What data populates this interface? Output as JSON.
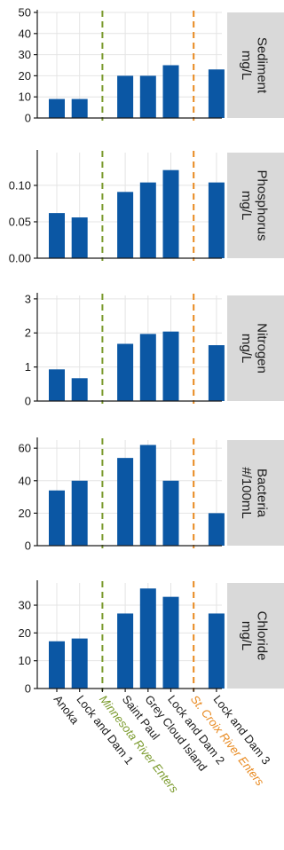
{
  "chart_data": {
    "type": "bar",
    "layout": "faceted, 5 stacked panels sharing the x axis, facet strip labels on the right",
    "categories": [
      "Anoka",
      "Lock and Dam 1",
      "Minnesota River Enters",
      "Saint Paul",
      "Grey Cloud Island",
      "Lock and Dam 2",
      "St. Croix River Enters",
      "Lock and Dam 3"
    ],
    "markers": [
      {
        "category": "Minnesota River Enters",
        "color": "#7a9a2c",
        "style": "dashed"
      },
      {
        "category": "St. Croix River Enters",
        "color": "#e8891f",
        "style": "dashed"
      }
    ],
    "bar_color": "#0b57a4",
    "strip_color": "#d9d9d9",
    "grid": true,
    "panels": [
      {
        "strip": [
          "Sediment",
          "mg/L"
        ],
        "ylim": [
          0,
          50
        ],
        "yticks": [
          0,
          10,
          20,
          30,
          40,
          50
        ],
        "ytick_labels": [
          "0",
          "10",
          "20",
          "30",
          "40",
          "50"
        ],
        "values": [
          9,
          9,
          null,
          20,
          20,
          25,
          null,
          23
        ]
      },
      {
        "strip": [
          "Phosphorus",
          "mg/L"
        ],
        "ylim": [
          0,
          0.145
        ],
        "yticks": [
          0,
          0.05,
          0.1
        ],
        "ytick_labels": [
          "0.00",
          "0.05",
          "0.10"
        ],
        "values": [
          0.062,
          0.056,
          null,
          0.091,
          0.104,
          0.121,
          null,
          0.104
        ]
      },
      {
        "strip": [
          "Nitrogen",
          "mg/L"
        ],
        "ylim": [
          0,
          3.1
        ],
        "yticks": [
          0,
          1,
          2,
          3
        ],
        "ytick_labels": [
          "0",
          "1",
          "2",
          "3"
        ],
        "values": [
          0.93,
          0.67,
          null,
          1.68,
          1.97,
          2.04,
          null,
          1.64
        ]
      },
      {
        "strip": [
          "Bacteria",
          "#/100mL"
        ],
        "ylim": [
          0,
          65
        ],
        "yticks": [
          0,
          20,
          40,
          60
        ],
        "ytick_labels": [
          "0",
          "20",
          "40",
          "60"
        ],
        "values": [
          34,
          40,
          null,
          54,
          62,
          40,
          null,
          20
        ]
      },
      {
        "strip": [
          "Chloride",
          "mg/L"
        ],
        "ylim": [
          0,
          38
        ],
        "yticks": [
          0,
          10,
          20,
          30
        ],
        "ytick_labels": [
          "0",
          "10",
          "20",
          "30"
        ],
        "values": [
          17,
          18,
          null,
          27,
          36,
          33,
          null,
          27
        ]
      }
    ]
  }
}
